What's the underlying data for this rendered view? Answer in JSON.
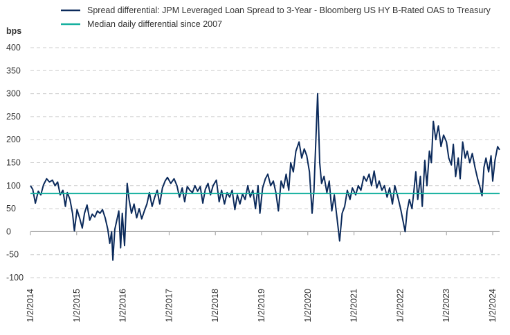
{
  "chart_data": {
    "type": "line",
    "title": "",
    "ylabel": "bps",
    "xlabel": "",
    "ylim": [
      -100,
      400
    ],
    "yticks": [
      400,
      350,
      300,
      250,
      200,
      150,
      100,
      50,
      0,
      -50,
      -100
    ],
    "xticks": [
      "1/2/2014",
      "1/2/2015",
      "1/2/2016",
      "1/2/2017",
      "1/2/2018",
      "1/2/2019",
      "1/2/2020",
      "1/2/2021",
      "1/2/2022",
      "1/2/2023",
      "1/2/2024"
    ],
    "grid": "horizontal dashed",
    "legend_position": "top",
    "colors": {
      "spread": "#0b2a5b",
      "median": "#16b09f"
    },
    "series": [
      {
        "name": "Spread differential: JPM Leveraged Loan Spread to 3-Year - Bloomberg US HY B-Rated OAS to Treasury",
        "points": [
          [
            "2014-01-02",
            100
          ],
          [
            "2014-01-20",
            92
          ],
          [
            "2014-02-10",
            62
          ],
          [
            "2014-03-05",
            88
          ],
          [
            "2014-03-25",
            80
          ],
          [
            "2014-04-15",
            102
          ],
          [
            "2014-05-10",
            115
          ],
          [
            "2014-06-01",
            108
          ],
          [
            "2014-06-25",
            112
          ],
          [
            "2014-07-15",
            100
          ],
          [
            "2014-08-05",
            108
          ],
          [
            "2014-08-25",
            80
          ],
          [
            "2014-09-15",
            90
          ],
          [
            "2014-10-05",
            55
          ],
          [
            "2014-10-20",
            85
          ],
          [
            "2014-11-10",
            70
          ],
          [
            "2014-11-30",
            40
          ],
          [
            "2014-12-15",
            2
          ],
          [
            "2015-01-05",
            48
          ],
          [
            "2015-01-25",
            30
          ],
          [
            "2015-02-15",
            8
          ],
          [
            "2015-03-05",
            40
          ],
          [
            "2015-03-25",
            58
          ],
          [
            "2015-04-15",
            25
          ],
          [
            "2015-05-05",
            38
          ],
          [
            "2015-05-25",
            32
          ],
          [
            "2015-06-15",
            45
          ],
          [
            "2015-07-05",
            40
          ],
          [
            "2015-07-25",
            48
          ],
          [
            "2015-08-15",
            30
          ],
          [
            "2015-09-05",
            5
          ],
          [
            "2015-09-20",
            -25
          ],
          [
            "2015-10-05",
            0
          ],
          [
            "2015-10-15",
            -62
          ],
          [
            "2015-10-30",
            5
          ],
          [
            "2015-11-15",
            25
          ],
          [
            "2015-12-01",
            45
          ],
          [
            "2015-12-15",
            -35
          ],
          [
            "2015-12-28",
            40
          ],
          [
            "2016-01-15",
            -30
          ],
          [
            "2016-02-05",
            105
          ],
          [
            "2016-02-20",
            70
          ],
          [
            "2016-03-10",
            40
          ],
          [
            "2016-03-30",
            60
          ],
          [
            "2016-04-20",
            30
          ],
          [
            "2016-05-10",
            50
          ],
          [
            "2016-05-30",
            28
          ],
          [
            "2016-06-20",
            45
          ],
          [
            "2016-07-10",
            60
          ],
          [
            "2016-07-30",
            85
          ],
          [
            "2016-08-20",
            55
          ],
          [
            "2016-09-10",
            75
          ],
          [
            "2016-09-30",
            90
          ],
          [
            "2016-10-20",
            60
          ],
          [
            "2016-11-10",
            95
          ],
          [
            "2016-12-01",
            110
          ],
          [
            "2016-12-20",
            118
          ],
          [
            "2017-01-15",
            105
          ],
          [
            "2017-02-10",
            115
          ],
          [
            "2017-03-05",
            100
          ],
          [
            "2017-03-25",
            75
          ],
          [
            "2017-04-15",
            95
          ],
          [
            "2017-05-05",
            65
          ],
          [
            "2017-05-25",
            98
          ],
          [
            "2017-06-15",
            90
          ],
          [
            "2017-07-05",
            85
          ],
          [
            "2017-07-25",
            100
          ],
          [
            "2017-08-15",
            88
          ],
          [
            "2017-09-05",
            98
          ],
          [
            "2017-09-25",
            62
          ],
          [
            "2017-10-15",
            92
          ],
          [
            "2017-11-05",
            105
          ],
          [
            "2017-11-25",
            80
          ],
          [
            "2017-12-15",
            100
          ],
          [
            "2018-01-10",
            112
          ],
          [
            "2018-02-01",
            65
          ],
          [
            "2018-02-20",
            90
          ],
          [
            "2018-03-15",
            60
          ],
          [
            "2018-04-05",
            85
          ],
          [
            "2018-04-25",
            75
          ],
          [
            "2018-05-15",
            90
          ],
          [
            "2018-06-05",
            48
          ],
          [
            "2018-06-25",
            80
          ],
          [
            "2018-07-15",
            60
          ],
          [
            "2018-08-05",
            82
          ],
          [
            "2018-08-25",
            70
          ],
          [
            "2018-09-15",
            100
          ],
          [
            "2018-10-05",
            75
          ],
          [
            "2018-10-25",
            90
          ],
          [
            "2018-11-15",
            50
          ],
          [
            "2018-12-05",
            100
          ],
          [
            "2018-12-20",
            40
          ],
          [
            "2019-01-10",
            95
          ],
          [
            "2019-02-01",
            115
          ],
          [
            "2019-02-20",
            125
          ],
          [
            "2019-03-15",
            100
          ],
          [
            "2019-04-05",
            110
          ],
          [
            "2019-04-25",
            85
          ],
          [
            "2019-05-15",
            45
          ],
          [
            "2019-06-05",
            110
          ],
          [
            "2019-06-25",
            95
          ],
          [
            "2019-07-15",
            125
          ],
          [
            "2019-08-05",
            90
          ],
          [
            "2019-08-20",
            150
          ],
          [
            "2019-09-10",
            130
          ],
          [
            "2019-09-30",
            175
          ],
          [
            "2019-10-25",
            195
          ],
          [
            "2019-11-15",
            160
          ],
          [
            "2019-12-05",
            180
          ],
          [
            "2019-12-25",
            165
          ],
          [
            "2020-01-15",
            130
          ],
          [
            "2020-02-05",
            40
          ],
          [
            "2020-02-20",
            90
          ],
          [
            "2020-03-20",
            300
          ],
          [
            "2020-04-05",
            150
          ],
          [
            "2020-04-20",
            105
          ],
          [
            "2020-05-10",
            120
          ],
          [
            "2020-06-01",
            85
          ],
          [
            "2020-06-20",
            110
          ],
          [
            "2020-07-10",
            45
          ],
          [
            "2020-07-30",
            80
          ],
          [
            "2020-08-20",
            30
          ],
          [
            "2020-09-10",
            -20
          ],
          [
            "2020-09-30",
            40
          ],
          [
            "2020-10-20",
            55
          ],
          [
            "2020-11-10",
            90
          ],
          [
            "2020-12-01",
            70
          ],
          [
            "2020-12-20",
            95
          ],
          [
            "2021-01-15",
            80
          ],
          [
            "2021-02-05",
            100
          ],
          [
            "2021-02-25",
            90
          ],
          [
            "2021-03-20",
            120
          ],
          [
            "2021-04-10",
            110
          ],
          [
            "2021-05-01",
            125
          ],
          [
            "2021-05-20",
            100
          ],
          [
            "2021-06-10",
            132
          ],
          [
            "2021-07-01",
            95
          ],
          [
            "2021-07-20",
            110
          ],
          [
            "2021-08-10",
            90
          ],
          [
            "2021-08-30",
            100
          ],
          [
            "2021-09-20",
            75
          ],
          [
            "2021-10-10",
            95
          ],
          [
            "2021-11-01",
            60
          ],
          [
            "2021-11-20",
            100
          ],
          [
            "2021-12-10",
            80
          ],
          [
            "2022-01-05",
            50
          ],
          [
            "2022-02-10",
            0
          ],
          [
            "2022-02-25",
            45
          ],
          [
            "2022-03-15",
            70
          ],
          [
            "2022-04-05",
            50
          ],
          [
            "2022-04-20",
            90
          ],
          [
            "2022-05-05",
            130
          ],
          [
            "2022-05-20",
            70
          ],
          [
            "2022-06-10",
            120
          ],
          [
            "2022-06-25",
            55
          ],
          [
            "2022-07-15",
            155
          ],
          [
            "2022-08-01",
            100
          ],
          [
            "2022-08-20",
            175
          ],
          [
            "2022-09-05",
            150
          ],
          [
            "2022-09-20",
            240
          ],
          [
            "2022-10-10",
            200
          ],
          [
            "2022-10-30",
            230
          ],
          [
            "2022-11-20",
            185
          ],
          [
            "2022-12-10",
            210
          ],
          [
            "2023-01-02",
            195
          ],
          [
            "2023-01-20",
            160
          ],
          [
            "2023-02-10",
            145
          ],
          [
            "2023-02-25",
            190
          ],
          [
            "2023-03-15",
            120
          ],
          [
            "2023-04-05",
            160
          ],
          [
            "2023-04-20",
            115
          ],
          [
            "2023-05-10",
            195
          ],
          [
            "2023-05-30",
            160
          ],
          [
            "2023-06-15",
            175
          ],
          [
            "2023-07-05",
            150
          ],
          [
            "2023-07-25",
            170
          ],
          [
            "2023-08-15",
            140
          ],
          [
            "2023-09-05",
            115
          ],
          [
            "2023-09-25",
            95
          ],
          [
            "2023-10-10",
            78
          ],
          [
            "2023-10-25",
            140
          ],
          [
            "2023-11-10",
            160
          ],
          [
            "2023-12-01",
            130
          ],
          [
            "2023-12-20",
            165
          ],
          [
            "2024-01-02",
            110
          ],
          [
            "2024-01-20",
            155
          ],
          [
            "2024-02-10",
            185
          ],
          [
            "2024-02-25",
            178
          ]
        ]
      },
      {
        "name": "Median daily differential since 2007",
        "value": 83
      }
    ]
  }
}
